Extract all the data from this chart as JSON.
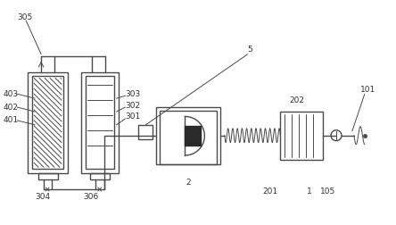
{
  "bg_color": "#ffffff",
  "line_color": "#4a4a4a",
  "lw": 1.0,
  "thin_lw": 0.7
}
